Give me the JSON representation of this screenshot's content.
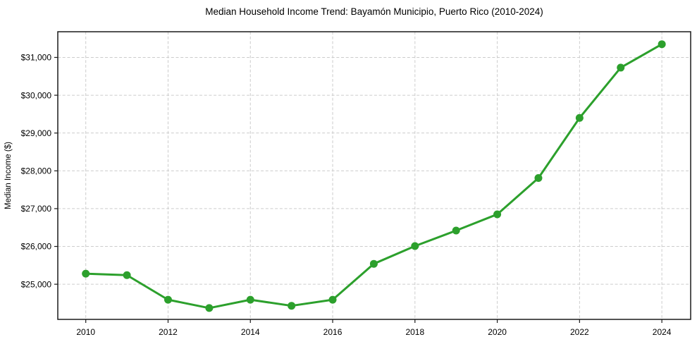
{
  "window": {
    "background_color": "#ffffff"
  },
  "chart_data": {
    "type": "line",
    "title": "Median Household Income Trend: Bayamón Municipio, Puerto Rico (2010-2024)",
    "xlabel": "",
    "ylabel": "Median Income ($)",
    "x": [
      2010,
      2011,
      2012,
      2013,
      2014,
      2015,
      2016,
      2017,
      2018,
      2019,
      2020,
      2021,
      2022,
      2023,
      2024
    ],
    "values": [
      25280,
      25240,
      24590,
      24370,
      24590,
      24430,
      24590,
      25540,
      26010,
      26420,
      26850,
      27810,
      29400,
      30730,
      31350
    ],
    "xlim": [
      2009.32,
      2024.7
    ],
    "ylim": [
      24070,
      31680
    ],
    "xticks": {
      "values": [
        2010,
        2012,
        2014,
        2016,
        2018,
        2020,
        2022,
        2024
      ],
      "labels": [
        "2010",
        "2012",
        "2014",
        "2016",
        "2018",
        "2020",
        "2022",
        "2024"
      ]
    },
    "yticks": {
      "values": [
        25000,
        26000,
        27000,
        28000,
        29000,
        30000,
        31000
      ],
      "labels": [
        "$25,000",
        "$26,000",
        "$27,000",
        "$28,000",
        "$29,000",
        "$30,000",
        "$31,000"
      ]
    },
    "grid": true,
    "grid_style": "dashed",
    "legend": false,
    "line_color": "#2ca02c",
    "marker": "circle",
    "marker_radius": 5.5,
    "line_width": 3,
    "grid_color": "#cccccc",
    "axis_color": "#1a1a1a",
    "text_color": "#000000"
  }
}
